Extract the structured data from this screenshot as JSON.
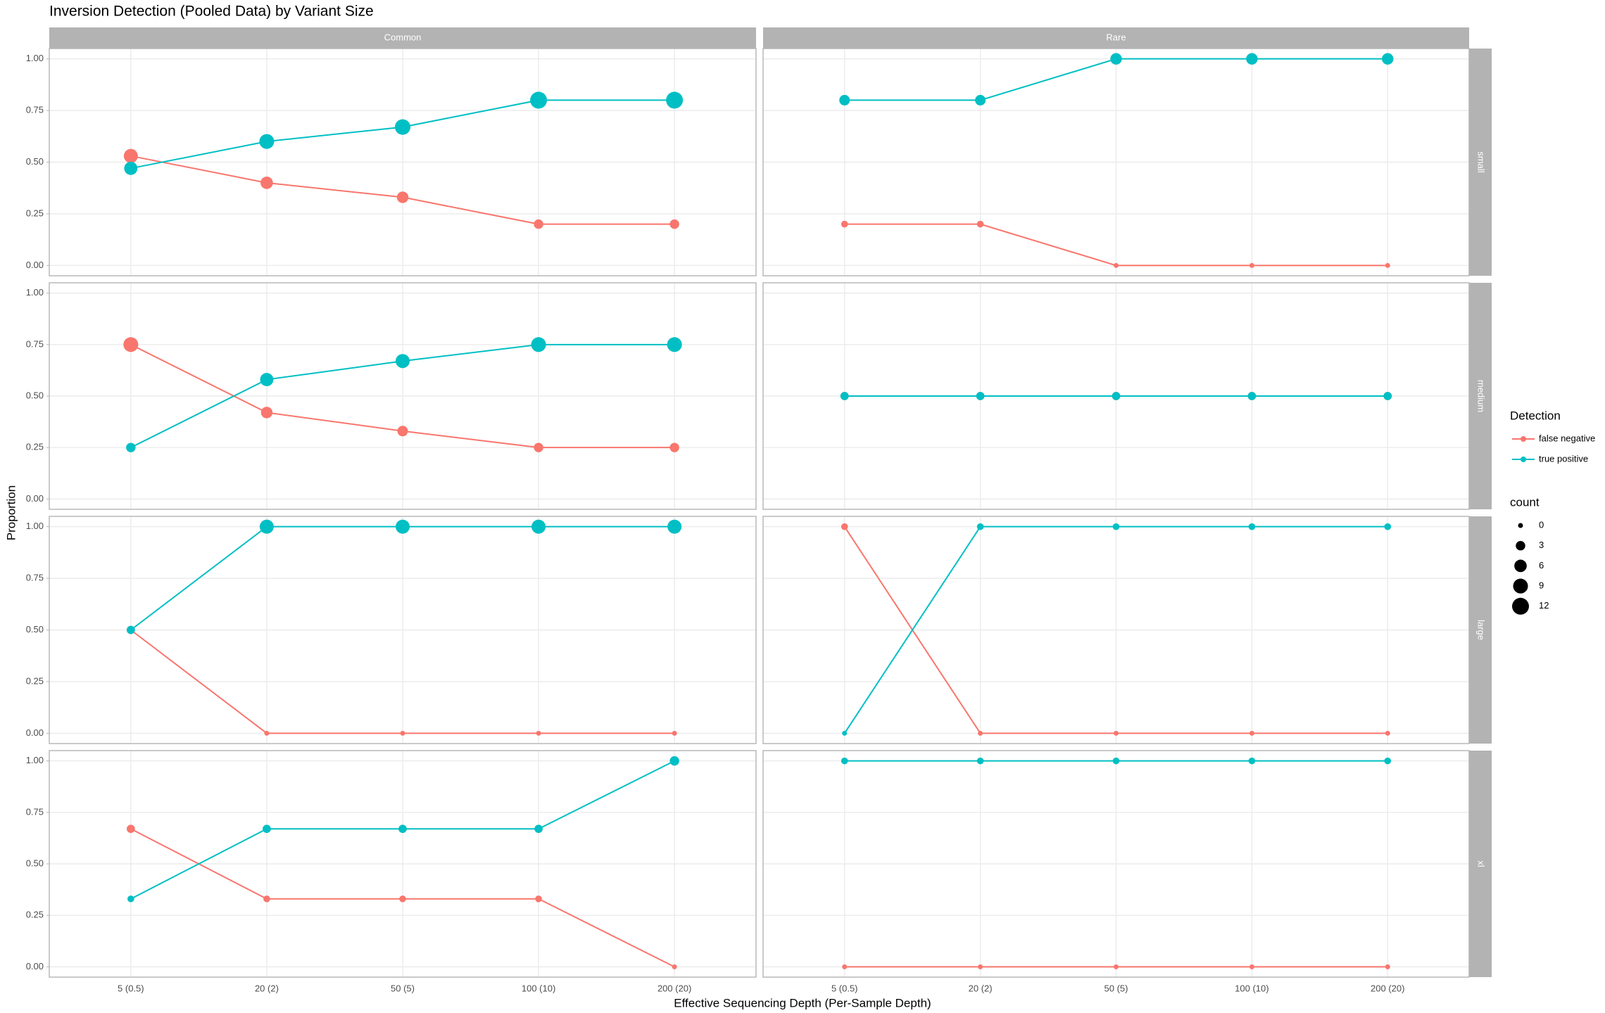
{
  "chart_data": {
    "type": "line",
    "title": "Inversion Detection (Pooled Data) by Variant Size",
    "x_label": "Effective Sequencing Depth (Per-Sample Depth)",
    "y_label": "Proportion",
    "categories": [
      "5 (0.5)",
      "20 (2)",
      "50 (5)",
      "100 (10)",
      "200 (20)"
    ],
    "ylim": [
      -0.05,
      1.05
    ],
    "yticks": [
      {
        "value": 0,
        "label": "0.00"
      },
      {
        "value": 0.25,
        "label": "0.25"
      },
      {
        "value": 0.5,
        "label": "0.50"
      },
      {
        "value": 0.75,
        "label": "0.75"
      },
      {
        "value": 1,
        "label": "1.00"
      }
    ],
    "grid": true,
    "legend_title": "Detection",
    "size_legend_title": "count",
    "size_legend_values": [
      0,
      3,
      6,
      9,
      12
    ],
    "panels": [
      {
        "column": "Common",
        "row": "small",
        "series": [
          {
            "name": "false negative",
            "color": "#F8766D",
            "values": [
              0.53,
              0.4,
              0.33,
              0.2,
              0.2
            ],
            "sizes": [
              8,
              6,
              5,
              3,
              3
            ]
          },
          {
            "name": "true positive",
            "color": "#00BFC4",
            "values": [
              0.47,
              0.6,
              0.67,
              0.8,
              0.8
            ],
            "sizes": [
              7,
              9,
              10,
              12,
              12
            ]
          }
        ]
      },
      {
        "column": "Rare",
        "row": "small",
        "series": [
          {
            "name": "false negative",
            "color": "#F8766D",
            "values": [
              0.2,
              0.2,
              0,
              0,
              0
            ],
            "sizes": [
              1,
              1,
              0,
              0,
              0
            ]
          },
          {
            "name": "true positive",
            "color": "#00BFC4",
            "values": [
              0.8,
              0.8,
              1,
              1,
              1
            ],
            "sizes": [
              4,
              4,
              5,
              5,
              5
            ]
          }
        ]
      },
      {
        "column": "Common",
        "row": "medium",
        "series": [
          {
            "name": "false negative",
            "color": "#F8766D",
            "values": [
              0.75,
              0.42,
              0.33,
              0.25,
              0.25
            ],
            "sizes": [
              9,
              5,
              4,
              3,
              3
            ]
          },
          {
            "name": "true positive",
            "color": "#00BFC4",
            "values": [
              0.25,
              0.58,
              0.67,
              0.75,
              0.75
            ],
            "sizes": [
              3,
              7,
              8,
              9,
              9
            ]
          }
        ]
      },
      {
        "column": "Rare",
        "row": "medium",
        "series": [
          {
            "name": "false negative",
            "color": "#F8766D",
            "values": [
              0.5,
              0.5,
              0.5,
              0.5,
              0.5
            ],
            "sizes": [
              2,
              2,
              2,
              2,
              2
            ]
          },
          {
            "name": "true positive",
            "color": "#00BFC4",
            "values": [
              0.5,
              0.5,
              0.5,
              0.5,
              0.5
            ],
            "sizes": [
              2,
              2,
              2,
              2,
              2
            ]
          }
        ]
      },
      {
        "column": "Common",
        "row": "large",
        "series": [
          {
            "name": "false negative",
            "color": "#F8766D",
            "values": [
              0.5,
              0,
              0,
              0,
              0
            ],
            "sizes": [
              2,
              0,
              0,
              0,
              0
            ]
          },
          {
            "name": "true positive",
            "color": "#00BFC4",
            "values": [
              0.5,
              1,
              1,
              1,
              1
            ],
            "sizes": [
              2,
              8,
              8,
              8,
              8
            ]
          }
        ]
      },
      {
        "column": "Rare",
        "row": "large",
        "series": [
          {
            "name": "false negative",
            "color": "#F8766D",
            "values": [
              1,
              0,
              0,
              0,
              0
            ],
            "sizes": [
              1,
              0,
              0,
              0,
              0
            ]
          },
          {
            "name": "true positive",
            "color": "#00BFC4",
            "values": [
              0,
              1,
              1,
              1,
              1
            ],
            "sizes": [
              0,
              1,
              1,
              1,
              1
            ]
          }
        ]
      },
      {
        "column": "Common",
        "row": "xl",
        "series": [
          {
            "name": "false negative",
            "color": "#F8766D",
            "values": [
              0.67,
              0.33,
              0.33,
              0.33,
              0
            ],
            "sizes": [
              2,
              1,
              1,
              1,
              0
            ]
          },
          {
            "name": "true positive",
            "color": "#00BFC4",
            "values": [
              0.33,
              0.67,
              0.67,
              0.67,
              1
            ],
            "sizes": [
              1,
              2,
              2,
              2,
              3
            ]
          }
        ]
      },
      {
        "column": "Rare",
        "row": "xl",
        "series": [
          {
            "name": "false negative",
            "color": "#F8766D",
            "values": [
              0,
              0,
              0,
              0,
              0
            ],
            "sizes": [
              0,
              0,
              0,
              0,
              0
            ]
          },
          {
            "name": "true positive",
            "color": "#00BFC4",
            "values": [
              1,
              1,
              1,
              1,
              1
            ],
            "sizes": [
              1,
              1,
              1,
              1,
              1
            ]
          }
        ]
      }
    ]
  }
}
